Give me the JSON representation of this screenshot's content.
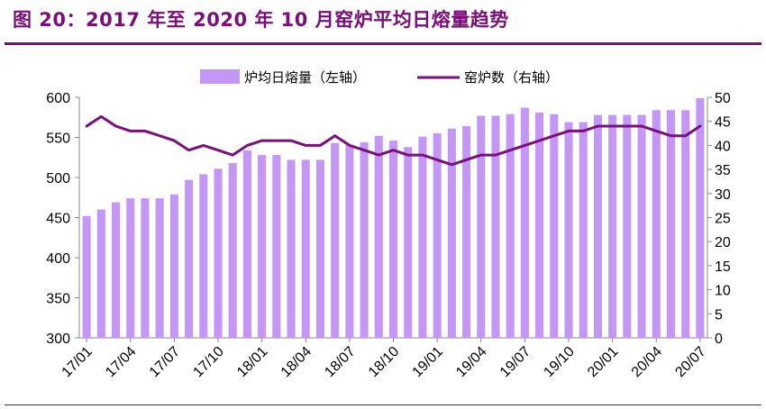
{
  "figure_title": "图 20：2017 年至 2020 年 10 月窑炉平均日熔量趋势",
  "colors": {
    "bar": "#c597f5",
    "line": "#7a0f7a",
    "title": "#7a0f7a",
    "axis": "#888888"
  },
  "chart_data": {
    "type": "bar+line",
    "title": "",
    "legend": {
      "position": "top-center",
      "entries": [
        "炉均日熔量（左轴）",
        "窑炉数（右轴）"
      ]
    },
    "categories": [
      "17/01",
      "17/02",
      "17/03",
      "17/04",
      "17/05",
      "17/06",
      "17/07",
      "17/08",
      "17/09",
      "17/10",
      "17/11",
      "17/12",
      "18/01",
      "18/02",
      "18/03",
      "18/04",
      "18/05",
      "18/06",
      "18/07",
      "18/08",
      "18/09",
      "18/10",
      "18/11",
      "18/12",
      "19/01",
      "19/02",
      "19/03",
      "19/04",
      "19/05",
      "19/06",
      "19/07",
      "19/08",
      "19/09",
      "19/10",
      "19/11",
      "19/12",
      "20/01",
      "20/02",
      "20/03",
      "20/04",
      "20/05",
      "20/06",
      "20/07"
    ],
    "x_tick_labels": [
      "17/01",
      "17/04",
      "17/07",
      "17/10",
      "18/01",
      "18/04",
      "18/07",
      "18/10",
      "19/01",
      "19/04",
      "19/07",
      "19/10",
      "20/01",
      "20/04",
      "20/07"
    ],
    "series": [
      {
        "name": "炉均日熔量（左轴）",
        "type": "bar",
        "axis": "left",
        "values": [
          452,
          460,
          469,
          474,
          474,
          474,
          479,
          497,
          504,
          511,
          518,
          534,
          528,
          528,
          522,
          522,
          522,
          543,
          541,
          544,
          552,
          546,
          538,
          551,
          555,
          561,
          564,
          577,
          577,
          579,
          587,
          581,
          579,
          569,
          569,
          578,
          578,
          578,
          578,
          584,
          584,
          584,
          599
        ]
      },
      {
        "name": "窑炉数（右轴）",
        "type": "line",
        "axis": "right",
        "values": [
          44,
          46,
          44,
          43,
          43,
          42,
          41,
          39,
          40,
          39,
          38,
          40,
          41,
          41,
          41,
          40,
          40,
          42,
          40,
          39,
          38,
          39,
          38,
          38,
          37,
          36,
          37,
          38,
          38,
          39,
          40,
          41,
          42,
          43,
          43,
          44,
          44,
          44,
          44,
          43,
          42,
          42,
          44
        ]
      }
    ],
    "y_left": {
      "min": 300,
      "max": 600,
      "ticks": [
        300,
        350,
        400,
        450,
        500,
        550,
        600
      ]
    },
    "y_right": {
      "min": 0,
      "max": 50,
      "ticks": [
        0,
        5,
        10,
        15,
        20,
        25,
        30,
        35,
        40,
        45,
        50
      ]
    },
    "grid": false
  }
}
